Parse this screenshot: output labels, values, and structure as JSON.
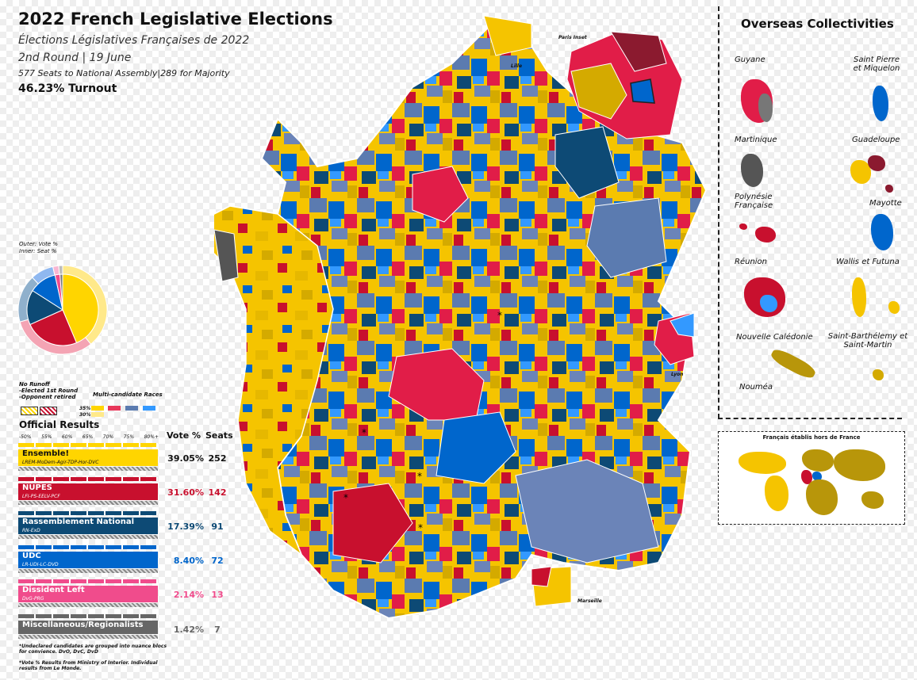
{
  "header": {
    "title": "2022 French Legislative Elections",
    "subtitle": "Élections Législatives Françaises de 2022",
    "round": "2nd Round | 19 June",
    "seats": "577 Seats to National Assembly|289 for Majority",
    "turnout": "46.23% Turnout"
  },
  "donut": {
    "label_outer": "Outer: Vote %",
    "label_inner": "Inner: Seat %",
    "vote_pct": [
      39.05,
      31.6,
      17.39,
      8.4,
      2.14,
      1.42
    ],
    "seat_counts": [
      252,
      142,
      91,
      72,
      13,
      7
    ],
    "colors": [
      "#FFD500",
      "#C8102E",
      "#0D4A75",
      "#0066CC",
      "#F04C8C",
      "#777777"
    ],
    "light_colors": [
      "#FFE98A",
      "#F4A4B4",
      "#8FB0CC",
      "#8FB8F0",
      "#F9B6D2",
      "#BBBBBB"
    ]
  },
  "legend": {
    "no_runoff": "No Runoff",
    "elected_first": "-Elected 1st Round",
    "opponent_retired": "-Opponent retired",
    "multi_candidate": "Multi-candidate Races",
    "pct35": "35%",
    "pct30": "30%",
    "pct_ticks": [
      "-50%",
      "55%",
      "60%",
      "65%",
      "70%",
      "75%",
      "80%+"
    ]
  },
  "results": {
    "heading": "Official Results",
    "col_vote": "Vote %",
    "col_seats": "Seats",
    "rows": [
      {
        "name": "Ensemble!",
        "sub": "LREM-MoDem-Agir-TDP-Hor-DVC",
        "vote": "39.05%",
        "seats": "252",
        "color": "#FFD500",
        "text": "#111111"
      },
      {
        "name": "NUPES",
        "sub": "LFI-PS-EELV-PCF",
        "vote": "31.60%",
        "seats": "142",
        "color": "#C8102E",
        "text": "#ffffff"
      },
      {
        "name": "Rassemblement National",
        "sub": "RN-ExD",
        "vote": "17.39%",
        "seats": "91",
        "color": "#0D4A75",
        "text": "#ffffff"
      },
      {
        "name": "UDC",
        "sub": "LR-UDI-LC-DVD",
        "vote": "8.40%",
        "seats": "72",
        "color": "#0066CC",
        "text": "#ffffff"
      },
      {
        "name": "Dissident Left",
        "sub": "DvG-PRG",
        "vote": "2.14%",
        "seats": "13",
        "color": "#F04C8C",
        "text": "#ffffff"
      },
      {
        "name": "Miscellaneous/Regionalists",
        "sub": "",
        "vote": "1.42%",
        "seats": "7",
        "color": "#666666",
        "text": "#ffffff"
      }
    ],
    "footnote1": "*Undeclared candidates are grouped into nuance blocs for convience. DvO, DvC, DvD",
    "footnote2": "*Vote % Results from Ministry of Interior. Individual results from Le Monde."
  },
  "map": {
    "paris_inset": "Paris Inset",
    "lille": "Lille",
    "lyon": "Lyon",
    "marseille": "Marseille"
  },
  "overseas": {
    "heading": "Overseas Collectivities",
    "guyane": "Guyane",
    "spm": "Saint Pierre et Miquelon",
    "martinique": "Martinique",
    "guadeloupe": "Guadeloupe",
    "polynesie": "Polynésie Française",
    "mayotte": "Mayotte",
    "reunion": "Réunion",
    "wallis": "Wallis et Futuna",
    "nc": "Nouvelle Calédonie",
    "sbsm": "Saint-Barthélemy et Saint-Martin",
    "noumea": "Nouméa",
    "abroad": "Français établis hors de France"
  }
}
